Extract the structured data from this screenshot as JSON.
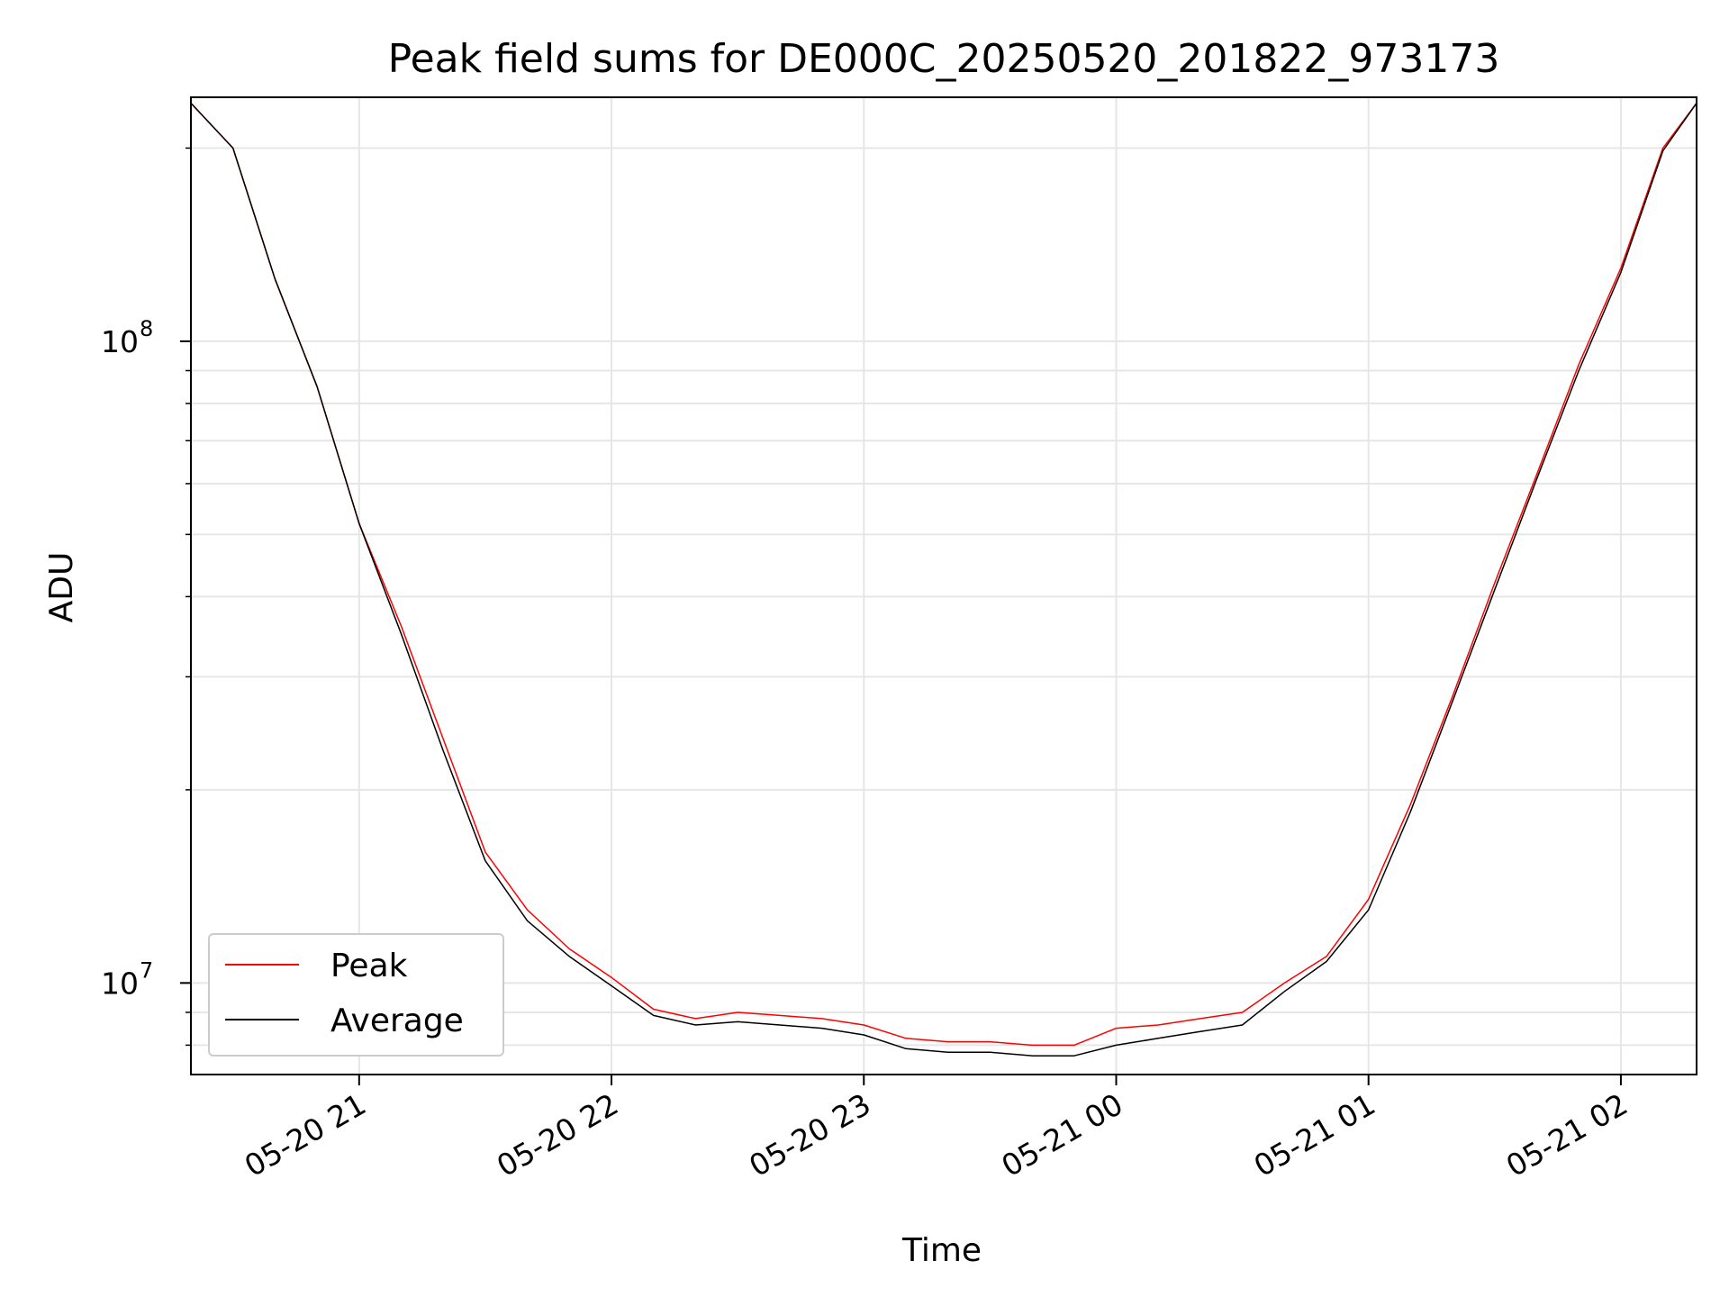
{
  "chart_data": {
    "type": "line",
    "title": "Peak field sums for DE000C_20250520_201822_973173",
    "xlabel": "Time",
    "ylabel": "ADU",
    "x_start": "2025-05-20 20:20",
    "x_end": "2025-05-21 02:18",
    "xlim": [
      "2025-05-20 20:20",
      "2025-05-21 02:18"
    ],
    "ylim": [
      7200000,
      240000000
    ],
    "yscale": "log",
    "grid": true,
    "legend_position": "lower-left",
    "x_ticks": [
      {
        "value": "2025-05-20 21:00",
        "label": "05-20 21"
      },
      {
        "value": "2025-05-20 22:00",
        "label": "05-20 22"
      },
      {
        "value": "2025-05-20 23:00",
        "label": "05-20 23"
      },
      {
        "value": "2025-05-21 00:00",
        "label": "05-21 00"
      },
      {
        "value": "2025-05-21 01:00",
        "label": "05-21 01"
      },
      {
        "value": "2025-05-21 02:00",
        "label": "05-21 02"
      }
    ],
    "y_ticks": [
      {
        "value": 10000000,
        "base": "10",
        "exp": "7"
      },
      {
        "value": 100000000,
        "base": "10",
        "exp": "8"
      }
    ],
    "series": [
      {
        "name": "Peak",
        "color": "#ff0000",
        "x": [
          "2025-05-20 20:20",
          "2025-05-20 20:30",
          "2025-05-20 20:40",
          "2025-05-20 20:50",
          "2025-05-20 21:00",
          "2025-05-20 21:10",
          "2025-05-20 21:20",
          "2025-05-20 21:30",
          "2025-05-20 21:40",
          "2025-05-20 21:50",
          "2025-05-20 22:00",
          "2025-05-20 22:10",
          "2025-05-20 22:20",
          "2025-05-20 22:30",
          "2025-05-20 22:40",
          "2025-05-20 22:50",
          "2025-05-20 23:00",
          "2025-05-20 23:10",
          "2025-05-20 23:20",
          "2025-05-20 23:30",
          "2025-05-20 23:40",
          "2025-05-20 23:50",
          "2025-05-21 00:00",
          "2025-05-21 00:10",
          "2025-05-21 00:20",
          "2025-05-21 00:30",
          "2025-05-21 00:40",
          "2025-05-21 00:50",
          "2025-05-21 01:00",
          "2025-05-21 01:10",
          "2025-05-21 01:20",
          "2025-05-21 01:30",
          "2025-05-21 01:40",
          "2025-05-21 01:50",
          "2025-05-21 02:00",
          "2025-05-21 02:10",
          "2025-05-21 02:18"
        ],
        "y": [
          235000000,
          200000000,
          125000000,
          85000000,
          52000000,
          36000000,
          24000000,
          16000000,
          13000000,
          11300000,
          10200000,
          9100000,
          8800000,
          9000000,
          8900000,
          8800000,
          8600000,
          8200000,
          8100000,
          8100000,
          8000000,
          8000000,
          8500000,
          8600000,
          8800000,
          9000000,
          10000000,
          11000000,
          13500000,
          19000000,
          28000000,
          42000000,
          62000000,
          92000000,
          130000000,
          200000000,
          235000000
        ]
      },
      {
        "name": "Average",
        "color": "#000000",
        "x": [
          "2025-05-20 20:20",
          "2025-05-20 20:30",
          "2025-05-20 20:40",
          "2025-05-20 20:50",
          "2025-05-20 21:00",
          "2025-05-20 21:10",
          "2025-05-20 21:20",
          "2025-05-20 21:30",
          "2025-05-20 21:40",
          "2025-05-20 21:50",
          "2025-05-20 22:00",
          "2025-05-20 22:10",
          "2025-05-20 22:20",
          "2025-05-20 22:30",
          "2025-05-20 22:40",
          "2025-05-20 22:50",
          "2025-05-20 23:00",
          "2025-05-20 23:10",
          "2025-05-20 23:20",
          "2025-05-20 23:30",
          "2025-05-20 23:40",
          "2025-05-20 23:50",
          "2025-05-21 00:00",
          "2025-05-21 00:10",
          "2025-05-21 00:20",
          "2025-05-21 00:30",
          "2025-05-21 00:40",
          "2025-05-21 00:50",
          "2025-05-21 01:00",
          "2025-05-21 01:10",
          "2025-05-21 01:20",
          "2025-05-21 01:30",
          "2025-05-21 01:40",
          "2025-05-21 01:50",
          "2025-05-21 02:00",
          "2025-05-21 02:10",
          "2025-05-21 02:18"
        ],
        "y": [
          235000000,
          200000000,
          125000000,
          85000000,
          52000000,
          35000000,
          23000000,
          15500000,
          12500000,
          11000000,
          9900000,
          8900000,
          8600000,
          8700000,
          8600000,
          8500000,
          8300000,
          7900000,
          7800000,
          7800000,
          7700000,
          7700000,
          8000000,
          8200000,
          8400000,
          8600000,
          9700000,
          10800000,
          13000000,
          18500000,
          27500000,
          41000000,
          61000000,
          90000000,
          128000000,
          198000000,
          235000000
        ]
      }
    ]
  }
}
